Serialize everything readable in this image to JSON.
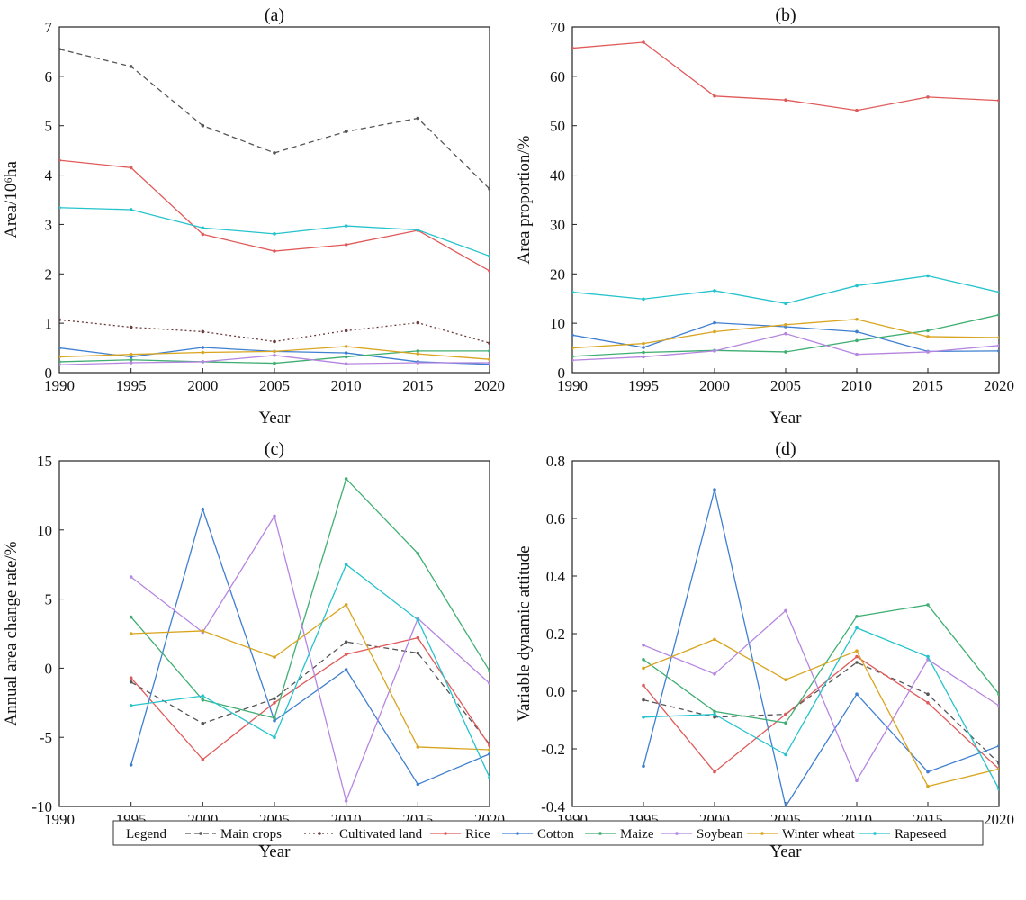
{
  "series_styles": {
    "Main crops": {
      "color": "#555555",
      "dash": "6,4"
    },
    "Cultivated land": {
      "color": "#6b3a3a",
      "dash": "2,3"
    },
    "Rice": {
      "color": "#e05a5a",
      "dash": ""
    },
    "Cotton": {
      "color": "#3f7fd0",
      "dash": ""
    },
    "Maize": {
      "color": "#3fae72",
      "dash": ""
    },
    "Soybean": {
      "color": "#b585e0",
      "dash": ""
    },
    "Winter wheat": {
      "color": "#d9a520",
      "dash": ""
    },
    "Rapeseed": {
      "color": "#25c3cc",
      "dash": ""
    }
  },
  "legend": {
    "title": "Legend",
    "entries": [
      "Main crops",
      "Cultivated land",
      "Rice",
      "Cotton",
      "Maize",
      "Soybean",
      "Winter wheat",
      "Rapeseed"
    ]
  },
  "chart_data": [
    {
      "type": "line",
      "title": "(a)",
      "xlabel": "Year",
      "ylabel": "Area/10⁶ha",
      "xlim": [
        1990,
        2020
      ],
      "xticks": [
        1990,
        1995,
        2000,
        2005,
        2010,
        2015,
        2020
      ],
      "ylim": [
        0,
        7
      ],
      "yticks": [
        "0",
        "1",
        "2",
        "3",
        "4",
        "5",
        "6",
        "7"
      ],
      "x": [
        1990,
        1995,
        2000,
        2005,
        2010,
        2015,
        2020
      ],
      "series": [
        {
          "name": "Main crops",
          "values": [
            6.55,
            6.2,
            5.0,
            4.45,
            4.88,
            5.15,
            3.72
          ]
        },
        {
          "name": "Cultivated land",
          "values": [
            1.07,
            0.92,
            0.83,
            0.63,
            0.85,
            1.01,
            0.6
          ]
        },
        {
          "name": "Rice",
          "values": [
            4.3,
            4.15,
            2.8,
            2.46,
            2.59,
            2.88,
            2.06
          ]
        },
        {
          "name": "Cotton",
          "values": [
            0.5,
            0.32,
            0.51,
            0.43,
            0.4,
            0.22,
            0.17
          ]
        },
        {
          "name": "Maize",
          "values": [
            0.22,
            0.26,
            0.22,
            0.19,
            0.32,
            0.44,
            0.44
          ]
        },
        {
          "name": "Soybean",
          "values": [
            0.16,
            0.2,
            0.22,
            0.35,
            0.18,
            0.2,
            0.2
          ]
        },
        {
          "name": "Winter wheat",
          "values": [
            0.32,
            0.37,
            0.41,
            0.43,
            0.53,
            0.38,
            0.27
          ]
        },
        {
          "name": "Rapeseed",
          "values": [
            3.34,
            3.3,
            2.93,
            2.81,
            2.97,
            2.89,
            2.36
          ]
        }
      ]
    },
    {
      "type": "line",
      "title": "(b)",
      "xlabel": "Year",
      "ylabel": "Area  proportion/%",
      "xlim": [
        1990,
        2020
      ],
      "xticks": [
        1990,
        1995,
        2000,
        2005,
        2010,
        2015,
        2020
      ],
      "ylim": [
        0,
        70
      ],
      "yticks": [
        "0",
        "10",
        "20",
        "30",
        "40",
        "50",
        "60",
        "70"
      ],
      "x": [
        1990,
        1995,
        2000,
        2005,
        2010,
        2015,
        2020
      ],
      "series": [
        {
          "name": "Rice",
          "values": [
            65.7,
            66.9,
            56.0,
            55.2,
            53.1,
            55.8,
            55.1
          ]
        },
        {
          "name": "Cotton",
          "values": [
            7.6,
            5.1,
            10.1,
            9.3,
            8.3,
            4.3,
            4.4
          ]
        },
        {
          "name": "Maize",
          "values": [
            3.3,
            4.1,
            4.5,
            4.2,
            6.5,
            8.5,
            11.7
          ]
        },
        {
          "name": "Soybean",
          "values": [
            2.5,
            3.2,
            4.4,
            7.9,
            3.7,
            4.2,
            5.5
          ]
        },
        {
          "name": "Winter wheat",
          "values": [
            5.0,
            5.9,
            8.3,
            9.7,
            10.8,
            7.3,
            7.1
          ]
        },
        {
          "name": "Rapeseed",
          "values": [
            16.3,
            14.9,
            16.6,
            14.0,
            17.6,
            19.6,
            16.3
          ]
        }
      ]
    },
    {
      "type": "line",
      "title": "(c)",
      "xlabel": "Year",
      "ylabel": "Annual area change rate/%",
      "xlim": [
        1990,
        2020
      ],
      "xticks": [
        1990,
        1995,
        2000,
        2005,
        2010,
        2015,
        2020
      ],
      "ylim": [
        -10,
        15
      ],
      "yticks": [
        "-10",
        "-5",
        "0",
        "5",
        "10",
        "15"
      ],
      "x": [
        1995,
        2000,
        2005,
        2010,
        2015,
        2020
      ],
      "series": [
        {
          "name": "Main crops",
          "values": [
            -1.0,
            -4.0,
            -2.2,
            1.9,
            1.1,
            -5.5
          ]
        },
        {
          "name": "Rice",
          "values": [
            -0.7,
            -6.6,
            -2.5,
            1.0,
            2.2,
            -5.6
          ]
        },
        {
          "name": "Cotton",
          "values": [
            -7.0,
            11.5,
            -3.8,
            -0.1,
            -8.4,
            -6.2
          ]
        },
        {
          "name": "Maize",
          "values": [
            3.7,
            -2.3,
            -3.6,
            13.7,
            8.3,
            -0.2
          ]
        },
        {
          "name": "Soybean",
          "values": [
            6.6,
            2.6,
            11.0,
            -9.6,
            3.6,
            -1.1
          ]
        },
        {
          "name": "Winter wheat",
          "values": [
            2.5,
            2.7,
            0.8,
            4.6,
            -5.7,
            -5.9
          ]
        },
        {
          "name": "Rapeseed",
          "values": [
            -2.7,
            -2.0,
            -5.0,
            7.5,
            3.5,
            -7.9
          ]
        }
      ]
    },
    {
      "type": "line",
      "title": "(d)",
      "xlabel": "Year",
      "ylabel": "Variable dynamic attitude",
      "xlim": [
        1990,
        2020
      ],
      "xticks": [
        1990,
        1995,
        2000,
        2005,
        2010,
        2015,
        2020
      ],
      "ylim": [
        -0.4,
        0.8
      ],
      "yticks": [
        "-0.4",
        "-0.2",
        "0.0",
        "0.2",
        "0.4",
        "0.6",
        "0.8"
      ],
      "x": [
        1995,
        2000,
        2005,
        2010,
        2015,
        2020
      ],
      "series": [
        {
          "name": "Main crops",
          "values": [
            -0.03,
            -0.09,
            -0.08,
            0.1,
            -0.01,
            -0.25
          ]
        },
        {
          "name": "Rice",
          "values": [
            0.02,
            -0.28,
            -0.08,
            0.12,
            -0.04,
            -0.27
          ]
        },
        {
          "name": "Cotton",
          "values": [
            -0.26,
            0.7,
            -0.4,
            -0.01,
            -0.28,
            -0.19
          ]
        },
        {
          "name": "Maize",
          "values": [
            0.11,
            -0.07,
            -0.11,
            0.26,
            0.3,
            -0.01
          ]
        },
        {
          "name": "Soybean",
          "values": [
            0.16,
            0.06,
            0.28,
            -0.31,
            0.11,
            -0.05
          ]
        },
        {
          "name": "Winter wheat",
          "values": [
            0.08,
            0.18,
            0.04,
            0.14,
            -0.33,
            -0.27
          ]
        },
        {
          "name": "Rapeseed",
          "values": [
            -0.09,
            -0.08,
            -0.22,
            0.22,
            0.12,
            -0.34
          ]
        }
      ]
    }
  ]
}
